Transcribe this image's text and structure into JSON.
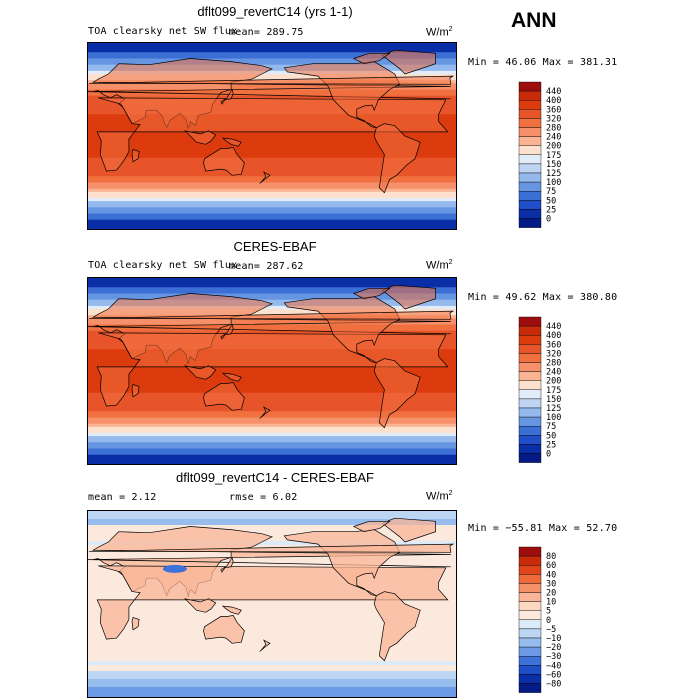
{
  "season": "ANN",
  "panels": [
    {
      "title": "dflt099_revertC14 (yrs 1-1)",
      "variable": "TOA clearsky net SW flux",
      "stat": "mean= 289.75",
      "units_base": "W/m",
      "units_exp": "2",
      "minmax": "Min =  46.06 Max = 381.31",
      "levels": [
        "440",
        "400",
        "360",
        "320",
        "280",
        "240",
        "200",
        "175",
        "150",
        "125",
        "100",
        "75",
        "50",
        "25",
        "0"
      ],
      "colors": [
        "#9e0d0d",
        "#c72b0a",
        "#dc3b0d",
        "#e8542a",
        "#f0703f",
        "#f6906a",
        "#fab493",
        "#fde1cf",
        "#e1ecf8",
        "#bdd5f3",
        "#94b9ec",
        "#6696e2",
        "#3c6fd6",
        "#1f4ec8",
        "#0a2ea6",
        "#041b86"
      ]
    },
    {
      "title": "CERES-EBAF",
      "variable": "TOA clearsky net SW flux",
      "stat": "mean= 287.62",
      "units_base": "W/m",
      "units_exp": "2",
      "minmax": "Min =  49.62 Max = 380.80",
      "levels": [
        "440",
        "400",
        "360",
        "320",
        "280",
        "240",
        "200",
        "175",
        "150",
        "125",
        "100",
        "75",
        "50",
        "25",
        "0"
      ],
      "colors": [
        "#9e0d0d",
        "#c72b0a",
        "#dc3b0d",
        "#e8542a",
        "#f0703f",
        "#f6906a",
        "#fab493",
        "#fde1cf",
        "#e1ecf8",
        "#bdd5f3",
        "#94b9ec",
        "#6696e2",
        "#3c6fd6",
        "#1f4ec8",
        "#0a2ea6",
        "#041b86"
      ]
    },
    {
      "title": "dflt099_revertC14 - CERES-EBAF",
      "stat": "mean =    2.12",
      "rmse": "rmse =   6.02",
      "units_base": "W/m",
      "units_exp": "2",
      "minmax": "Min = −55.81 Max =  52.70",
      "levels": [
        "80",
        "60",
        "40",
        "30",
        "20",
        "10",
        "5",
        "0",
        "−5",
        "−10",
        "−20",
        "−30",
        "−40",
        "−60",
        "−80"
      ],
      "colors": [
        "#9e0d0d",
        "#c72b0a",
        "#e0441a",
        "#ee6a3a",
        "#f59168",
        "#f9b597",
        "#fcd8c2",
        "#fbe9dd",
        "#ddeaf7",
        "#bcd6f3",
        "#97bcee",
        "#6c9ae4",
        "#3f72d8",
        "#1d4ec6",
        "#0a2ea6",
        "#041b86"
      ]
    }
  ]
}
